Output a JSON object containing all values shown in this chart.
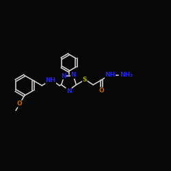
{
  "bg_color": "#070707",
  "bond_color": "#cccccc",
  "N_color": "#2222ee",
  "O_color": "#cc6600",
  "S_color": "#aaaa00",
  "bond_lw": 1.2,
  "font_size": 6.5,
  "fig_w": 2.5,
  "fig_h": 2.5,
  "dpi": 100,
  "xlim": [
    0.0,
    10.5
  ],
  "ylim": [
    1.5,
    7.5
  ]
}
